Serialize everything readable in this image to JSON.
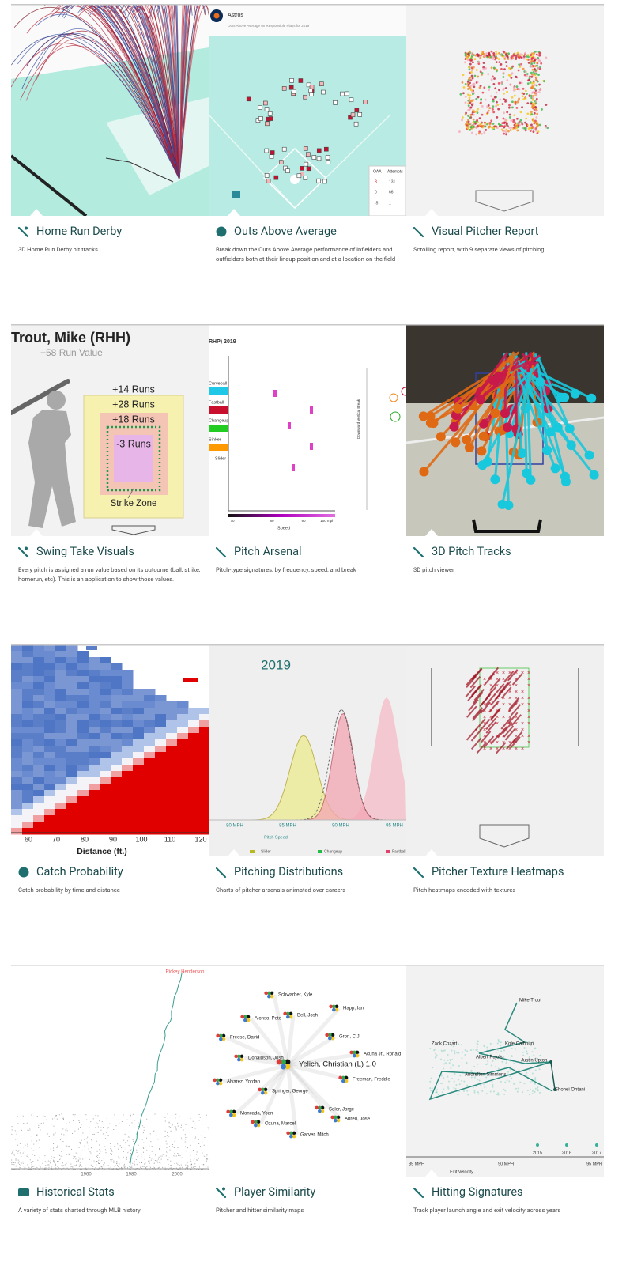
{
  "cards": [
    {
      "title": "Home Run Derby",
      "description": "3D Home Run Derby hit tracks",
      "thumbnail_labels": []
    },
    {
      "title": "Outs Above Average",
      "description": "Break down the Outs Above Average performance of infielders and outfielders both at their lineup position and at a location on the field",
      "thumbnail_labels": [
        "Astros",
        "Outs Above Average on Responsible Plays for 2019",
        "OAA",
        "Attempts",
        "3",
        "0",
        "-5",
        "131",
        "66",
        "1"
      ]
    },
    {
      "title": "Visual Pitcher Report",
      "description": "Scrolling report, with 9 separate views of pitching",
      "thumbnail_labels": []
    },
    {
      "title": "Swing Take Visuals",
      "description": "Every pitch is assigned a run value based on its outcome (ball, strike, homerun, etc). This is an application to show those values.",
      "thumbnail_labels": [
        "Trout, Mike (RHH)",
        "+58 Run Value",
        "+14 Runs",
        "+28 Runs",
        "+18 Runs",
        "-3 Runs",
        "Strike Zone"
      ]
    },
    {
      "title": "Pitch Arsenal",
      "description": "Pitch-type signatures, by frequency, speed, and break",
      "thumbnail_labels": [
        "RHP) 2019",
        "Curveball",
        "Fastball",
        "Changeup",
        "Sinker",
        "Slider",
        "Speed",
        "70",
        "80",
        "90",
        "100 mph",
        "Downward Vertical Break"
      ]
    },
    {
      "title": "3D Pitch Tracks",
      "description": "3D pitch viewer",
      "thumbnail_labels": []
    },
    {
      "title": "Catch Probability",
      "description": "Catch probability by time and distance",
      "thumbnail_labels": [
        "60",
        "70",
        "80",
        "90",
        "100",
        "110",
        "120",
        "Distance (ft.)"
      ]
    },
    {
      "title": "Pitching Distributions",
      "description": "Charts of pitcher arsenals animated over careers",
      "thumbnail_labels": [
        "2019",
        "80 MPH",
        "85 MPH",
        "90 MPH",
        "95 MPH",
        "Pitch Speed",
        "Slider",
        "Changeup",
        "Fastball"
      ]
    },
    {
      "title": "Pitcher Texture Heatmaps",
      "description": "Pitch heatmaps encoded with textures",
      "thumbnail_labels": []
    },
    {
      "title": "Historical Stats",
      "description": "A variety of stats charted through MLB history",
      "thumbnail_labels": [
        "Rickey Henderson",
        "1960",
        "1980",
        "2000"
      ]
    },
    {
      "title": "Player Similarity",
      "description": "Pitcher and hitter similarity maps",
      "thumbnail_labels": [
        "Schwarber, Kyle",
        "Happ, Ian",
        "Alonso, Pete",
        "Bell, Josh",
        "Freese, David",
        "Gron, C.J.",
        "Donaldson, Josh",
        "Acuna Jr., Ronald",
        "Yelich, Christian (L) 1.0",
        "Alvarez, Yordan",
        "Freeman, Freddie",
        "Springer, George",
        "Moncada, Yoan",
        "Soler, Jorge",
        "Ozuna, Marcell",
        "Abreu, Jose",
        "Garver, Mitch"
      ]
    },
    {
      "title": "Hitting Signatures",
      "description": "Track player launch angle and exit velocity across years",
      "thumbnail_labels": [
        "Mike Trout",
        "Kole Calhoun",
        "Zack Cozart",
        "Albert Pujols",
        "Justin Upton",
        "Andrelton Simmons",
        "Shohei Ohtani",
        "2015",
        "2016",
        "2017",
        "85 MPH",
        "90 MPH",
        "95 MPH",
        "Exit Velocity"
      ]
    }
  ]
}
